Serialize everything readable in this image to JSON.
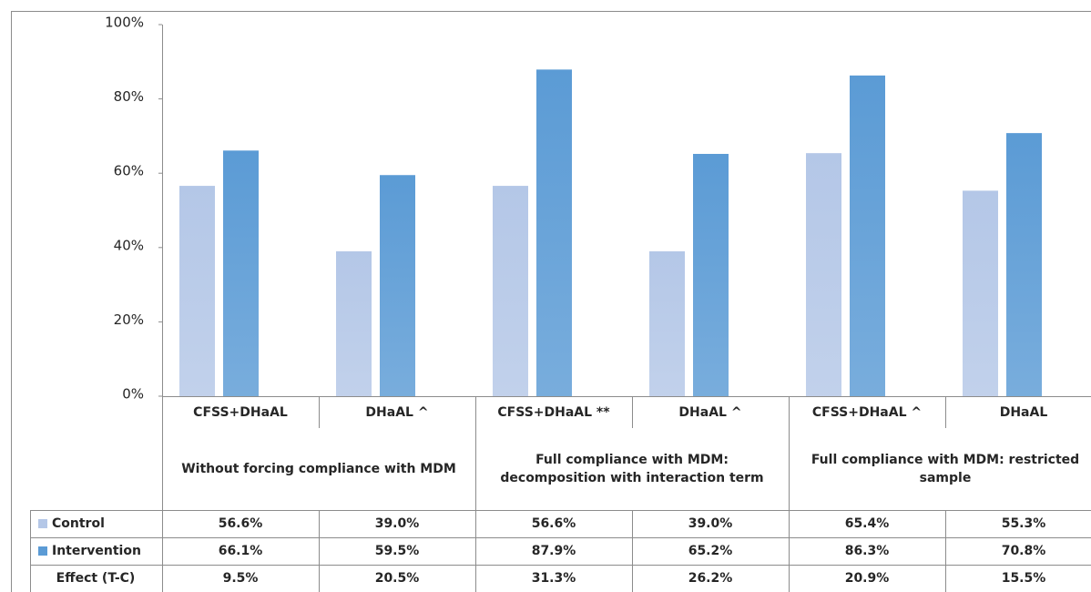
{
  "chart_data": {
    "type": "bar",
    "categories": [
      "CFSS+DHaAL",
      "DHaAL ^",
      "CFSS+DHaAL **",
      "DHaAL ^",
      "CFSS+DHaAL ^",
      "DHaAL"
    ],
    "groups": [
      "Without forcing compliance with MDM",
      "Full compliance with MDM: decomposition with interaction term",
      "Full compliance with MDM: restricted sample"
    ],
    "series": [
      {
        "name": "Control",
        "color": "#b4c7e7",
        "values": [
          56.6,
          39.0,
          56.6,
          39.0,
          65.4,
          55.3
        ],
        "value_labels": [
          "56.6%",
          "39.0%",
          "56.6%",
          "39.0%",
          "65.4%",
          "55.3%"
        ]
      },
      {
        "name": "Intervention",
        "color": "#5b9bd5",
        "values": [
          66.1,
          59.5,
          87.9,
          65.2,
          86.3,
          70.8
        ],
        "value_labels": [
          "66.1%",
          "59.5%",
          "87.9%",
          "65.2%",
          "86.3%",
          "70.8%"
        ]
      }
    ],
    "effect_row": {
      "name": "Effect (T-C)",
      "cells": [
        "9.5%",
        "20.5%",
        "31.3%",
        "26.2%",
        "20.9%",
        "15.5%"
      ]
    },
    "ylim": [
      0,
      100
    ],
    "yticks": [
      {
        "value": 0,
        "label": "0%"
      },
      {
        "value": 20,
        "label": "20%"
      },
      {
        "value": 40,
        "label": "40%"
      },
      {
        "value": 60,
        "label": "60%"
      },
      {
        "value": 80,
        "label": "80%"
      },
      {
        "value": 100,
        "label": "100%"
      }
    ],
    "grid": false
  }
}
